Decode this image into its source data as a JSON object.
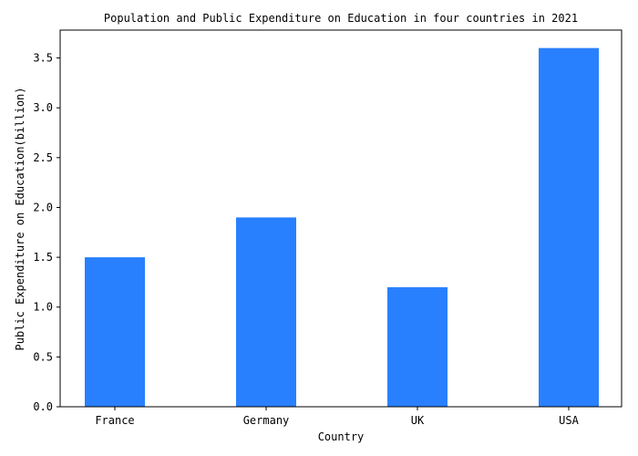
{
  "chart_data": {
    "type": "bar",
    "title": "Population and Public Expenditure on Education in four countries in 2021",
    "xlabel": "Country",
    "ylabel": "Public Expenditure on Education(billion)",
    "categories": [
      "France",
      "Germany",
      "UK",
      "USA"
    ],
    "values": [
      1.5,
      1.9,
      1.2,
      3.6
    ],
    "ylim": [
      0,
      3.78
    ],
    "yticks": [
      "0.0",
      "0.5",
      "1.0",
      "1.5",
      "2.0",
      "2.5",
      "3.0",
      "3.5"
    ],
    "bar_color": "#2980ff",
    "grid": false,
    "legend": "none"
  }
}
